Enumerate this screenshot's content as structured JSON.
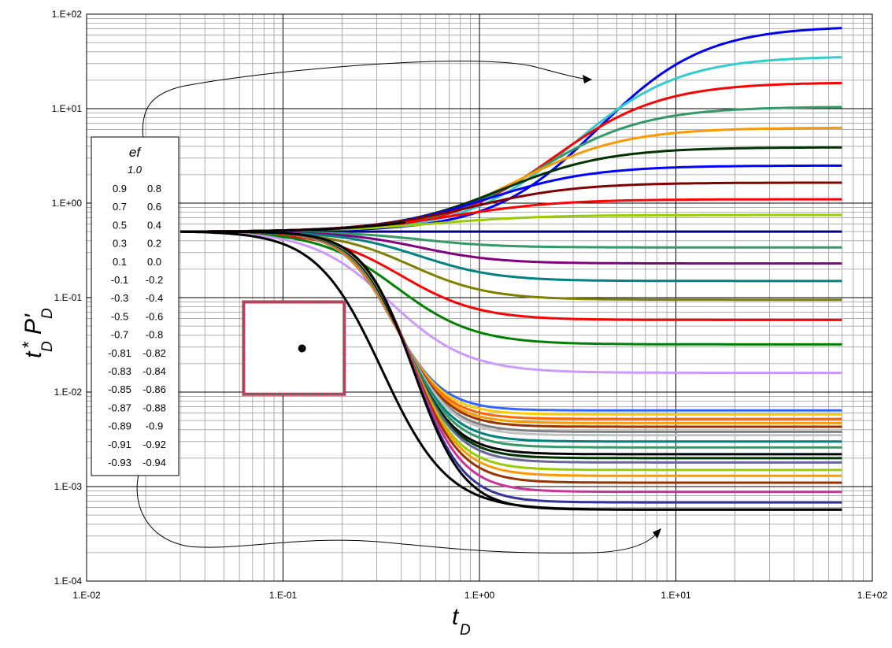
{
  "chart_data": {
    "type": "line",
    "xscale": "log",
    "yscale": "log",
    "xlim": [
      0.01,
      100
    ],
    "ylim": [
      0.0001,
      100
    ],
    "x_tick_labels": [
      "1.E-02",
      "1.E-01",
      "1.E+00",
      "1.E+01",
      "1.E+02"
    ],
    "y_tick_labels": [
      "1.E-04",
      "1.E-03",
      "1.E-02",
      "1.E-01",
      "1.E+00",
      "1.E+01",
      "1.E+02"
    ],
    "xlabel": {
      "main": "t",
      "sub": "D"
    },
    "ylabel": {
      "main": "t",
      "sup": "*",
      "sub1": "D",
      "main2": "P'",
      "sub2": "D"
    },
    "grid": true,
    "legend": {
      "title": "ef",
      "subtitle": "1.0",
      "rows": [
        [
          "0.9",
          "0.8"
        ],
        [
          "0.7",
          "0.6"
        ],
        [
          "0.5",
          "0.4"
        ],
        [
          "0.3",
          "0.2"
        ],
        [
          "0.1",
          "0.0"
        ],
        [
          "-0.1",
          "-0.2"
        ],
        [
          "-0.3",
          "-0.4"
        ],
        [
          "-0.5",
          "-0.6"
        ],
        [
          "-0.7",
          "-0.8"
        ],
        [
          "-0.81",
          "-0.82"
        ],
        [
          "-0.83",
          "-0.84"
        ],
        [
          "-0.85",
          "-0.86"
        ],
        [
          "-0.87",
          "-0.88"
        ],
        [
          "-0.89",
          "-0.9"
        ],
        [
          "-0.91",
          "-0.92"
        ],
        [
          "-0.93",
          "-0.94"
        ]
      ]
    },
    "curve_start": [
      0.03,
      0.5
    ],
    "x_end": 70,
    "series_upper": [
      {
        "ef": "1.0",
        "color": "#0000ee",
        "final": 75,
        "x_mid": 4.0
      },
      {
        "ef": "0.9",
        "color": "#33cccc",
        "final": 36,
        "x_mid": 3.0
      },
      {
        "ef": "0.8",
        "color": "#ff0000",
        "final": 19,
        "x_mid": 2.4
      },
      {
        "ef": "0.7",
        "color": "#339966",
        "final": 10.5,
        "x_mid": 2.0
      },
      {
        "ef": "0.6",
        "color": "#ff9900",
        "final": 6.3,
        "x_mid": 1.6
      },
      {
        "ef": "0.5",
        "color": "#003300",
        "final": 3.9,
        "x_mid": 1.3
      },
      {
        "ef": "0.4",
        "color": "#0000ff",
        "final": 2.5,
        "x_mid": 1.1
      },
      {
        "ef": "0.3",
        "color": "#800000",
        "final": 1.65,
        "x_mid": 0.9
      },
      {
        "ef": "0.2",
        "color": "#ff0000",
        "final": 1.1,
        "x_mid": 0.75
      },
      {
        "ef": "0.1",
        "color": "#99cc00",
        "final": 0.75,
        "x_mid": 0.6
      },
      {
        "ef": "0.0",
        "color": "#000080",
        "final": 0.5,
        "x_mid": 0.5
      },
      {
        "ef": "-0.1",
        "color": "#339966",
        "final": 0.34,
        "x_mid": 0.5
      },
      {
        "ef": "-0.2",
        "color": "#800080",
        "final": 0.23,
        "x_mid": 0.5
      },
      {
        "ef": "-0.3",
        "color": "#008080",
        "final": 0.15,
        "x_mid": 0.5
      },
      {
        "ef": "-0.4",
        "color": "#808000",
        "final": 0.095,
        "x_mid": 0.45
      },
      {
        "ef": "-0.5",
        "color": "#ff0000",
        "final": 0.058,
        "x_mid": 0.4
      },
      {
        "ef": "-0.6",
        "color": "#008000",
        "final": 0.032,
        "x_mid": 0.38
      },
      {
        "ef": "-0.7",
        "color": "#cc99ff",
        "final": 0.016,
        "x_mid": 0.35
      }
    ],
    "black_upper": {
      "color": "#000000",
      "final": 1.2,
      "x_end": 0.42,
      "x_mid": 0.8
    },
    "series_lower": [
      {
        "color": "#3366ff",
        "final": 0.0064
      },
      {
        "color": "#ffcc00",
        "final": 0.0058
      },
      {
        "color": "#ff6600",
        "final": 0.0052
      },
      {
        "color": "#ff9900",
        "final": 0.0047
      },
      {
        "color": "#993300",
        "final": 0.0043
      },
      {
        "color": "#808080",
        "final": 0.0038
      },
      {
        "color": "#c0c0c0",
        "final": 0.0035
      },
      {
        "color": "#008080",
        "final": 0.003
      },
      {
        "color": "#339966",
        "final": 0.0026
      },
      {
        "color": "#000000",
        "final": 0.0022
      },
      {
        "color": "#003300",
        "final": 0.002
      },
      {
        "color": "#666699",
        "final": 0.0018
      },
      {
        "color": "#99cc00",
        "final": 0.0015
      },
      {
        "color": "#ff9900",
        "final": 0.0013
      },
      {
        "color": "#993300",
        "final": 0.0011
      },
      {
        "color": "#cc3399",
        "final": 0.00088
      },
      {
        "color": "#333399",
        "final": 0.00068
      },
      {
        "color": "#000000",
        "final": 0.00057
      }
    ],
    "square_symbol": {
      "x": [
        0.063,
        0.205
      ],
      "y": [
        0.0095,
        0.09
      ],
      "dot": [
        0.125,
        0.029
      ],
      "border": "#cc3366",
      "dash": "#3a8a3a"
    }
  }
}
